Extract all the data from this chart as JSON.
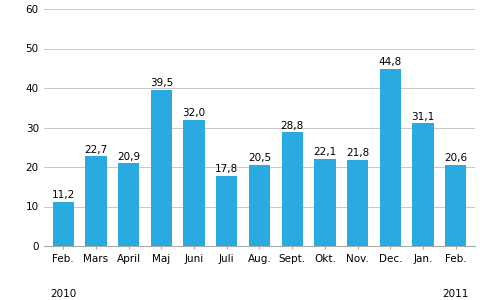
{
  "categories": [
    "Feb.",
    "Mars",
    "April",
    "Maj",
    "Juni",
    "Juli",
    "Aug.",
    "Sept.",
    "Okt.",
    "Nov.",
    "Dec.",
    "Jan.",
    "Feb."
  ],
  "values": [
    11.2,
    22.7,
    20.9,
    39.5,
    32.0,
    17.8,
    20.5,
    28.8,
    22.1,
    21.8,
    44.8,
    31.1,
    20.6
  ],
  "bar_color": "#29abe2",
  "ylim": [
    0,
    60
  ],
  "yticks": [
    0,
    10,
    20,
    30,
    40,
    50,
    60
  ],
  "value_labels": [
    "11,2",
    "22,7",
    "20,9",
    "39,5",
    "32,0",
    "17,8",
    "20,5",
    "28,8",
    "22,1",
    "21,8",
    "44,8",
    "31,1",
    "20,6"
  ],
  "label_fontsize": 7.5,
  "tick_fontsize": 7.5,
  "year_fontsize": 7.5,
  "background_color": "#ffffff",
  "grid_color": "#c8c8c8",
  "year_2010_idx": 0,
  "year_2011_idx": 12
}
